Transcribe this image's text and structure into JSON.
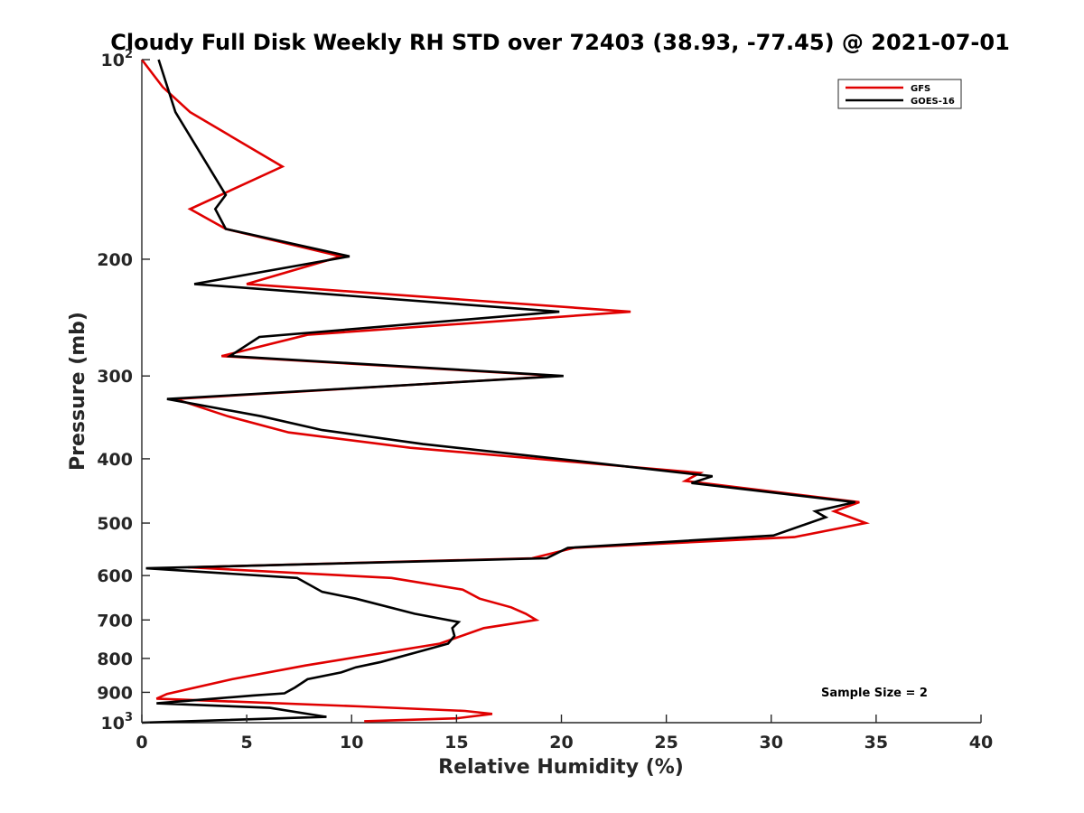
{
  "chart_data": {
    "type": "line",
    "title": "Cloudy Full Disk Weekly RH STD over 72403 (38.93, -77.45) @ 2021-07-01",
    "xlabel": "Relative Humidity (%)",
    "ylabel": "Pressure (mb)",
    "xlim": [
      0,
      40
    ],
    "ylim": [
      100,
      1000
    ],
    "y_scale": "log",
    "y_reversed": true,
    "xticks": [
      "0",
      "5",
      "10",
      "15",
      "20",
      "25",
      "30",
      "35",
      "40"
    ],
    "yticks": [
      {
        "value": 100,
        "label": "10",
        "exp": "2"
      },
      {
        "value": 200,
        "label": "200",
        "exp": ""
      },
      {
        "value": 300,
        "label": "300",
        "exp": ""
      },
      {
        "value": 400,
        "label": "400",
        "exp": ""
      },
      {
        "value": 500,
        "label": "500",
        "exp": ""
      },
      {
        "value": 600,
        "label": "600",
        "exp": ""
      },
      {
        "value": 700,
        "label": "700",
        "exp": ""
      },
      {
        "value": 800,
        "label": "800",
        "exp": ""
      },
      {
        "value": 900,
        "label": "900",
        "exp": ""
      },
      {
        "value": 1000,
        "label": "10",
        "exp": "3"
      }
    ],
    "grid": false,
    "legend_position": "top-right",
    "annotation": "Sample Size = 2",
    "series": [
      {
        "name": "GFS",
        "color": "#e00000",
        "points": [
          [
            0.0,
            100
          ],
          [
            1.0,
            110
          ],
          [
            2.3,
            120
          ],
          [
            6.7,
            145
          ],
          [
            2.3,
            168
          ],
          [
            4.0,
            180
          ],
          [
            9.5,
            198
          ],
          [
            5.0,
            218
          ],
          [
            23.3,
            240
          ],
          [
            7.9,
            260
          ],
          [
            3.8,
            280
          ],
          [
            19.9,
            300
          ],
          [
            1.6,
            325
          ],
          [
            4.1,
            345
          ],
          [
            7.0,
            365
          ],
          [
            12.8,
            385
          ],
          [
            26.6,
            420
          ],
          [
            25.9,
            432
          ],
          [
            34.2,
            465
          ],
          [
            33.0,
            480
          ],
          [
            34.5,
            500
          ],
          [
            31.1,
            525
          ],
          [
            20.6,
            545
          ],
          [
            18.6,
            565
          ],
          [
            2.2,
            583
          ],
          [
            11.9,
            605
          ],
          [
            15.3,
            630
          ],
          [
            16.1,
            650
          ],
          [
            17.6,
            670
          ],
          [
            18.3,
            685
          ],
          [
            18.8,
            700
          ],
          [
            16.3,
            720
          ],
          [
            14.2,
            760
          ],
          [
            7.8,
            820
          ],
          [
            4.3,
            860
          ],
          [
            1.2,
            905
          ],
          [
            0.7,
            920
          ],
          [
            10.4,
            945
          ],
          [
            15.4,
            960
          ],
          [
            16.7,
            970
          ],
          [
            15.0,
            985
          ],
          [
            10.6,
            995
          ]
        ]
      },
      {
        "name": "GOES-16",
        "color": "#000000",
        "points": [
          [
            0.8,
            100
          ],
          [
            1.6,
            120
          ],
          [
            4.0,
            160
          ],
          [
            3.5,
            168
          ],
          [
            4.0,
            180
          ],
          [
            9.9,
            198
          ],
          [
            2.5,
            218
          ],
          [
            19.9,
            240
          ],
          [
            5.6,
            262
          ],
          [
            4.2,
            280
          ],
          [
            20.1,
            300
          ],
          [
            1.2,
            325
          ],
          [
            5.7,
            345
          ],
          [
            8.6,
            362
          ],
          [
            13.4,
            380
          ],
          [
            21.4,
            405
          ],
          [
            27.2,
            425
          ],
          [
            26.2,
            435
          ],
          [
            34.0,
            465
          ],
          [
            32.1,
            480
          ],
          [
            32.6,
            490
          ],
          [
            30.1,
            522
          ],
          [
            20.3,
            545
          ],
          [
            19.3,
            565
          ],
          [
            0.2,
            585
          ],
          [
            7.4,
            605
          ],
          [
            8.6,
            635
          ],
          [
            10.2,
            650
          ],
          [
            13.0,
            685
          ],
          [
            15.1,
            705
          ],
          [
            14.8,
            720
          ],
          [
            14.9,
            740
          ],
          [
            14.6,
            760
          ],
          [
            13.0,
            785
          ],
          [
            11.4,
            810
          ],
          [
            10.2,
            825
          ],
          [
            9.5,
            840
          ],
          [
            7.9,
            860
          ],
          [
            7.3,
            885
          ],
          [
            6.8,
            903
          ],
          [
            5.3,
            910
          ],
          [
            0.7,
            935
          ],
          [
            6.1,
            950
          ],
          [
            8.8,
            980
          ],
          [
            0.0,
            1000
          ]
        ]
      }
    ]
  }
}
